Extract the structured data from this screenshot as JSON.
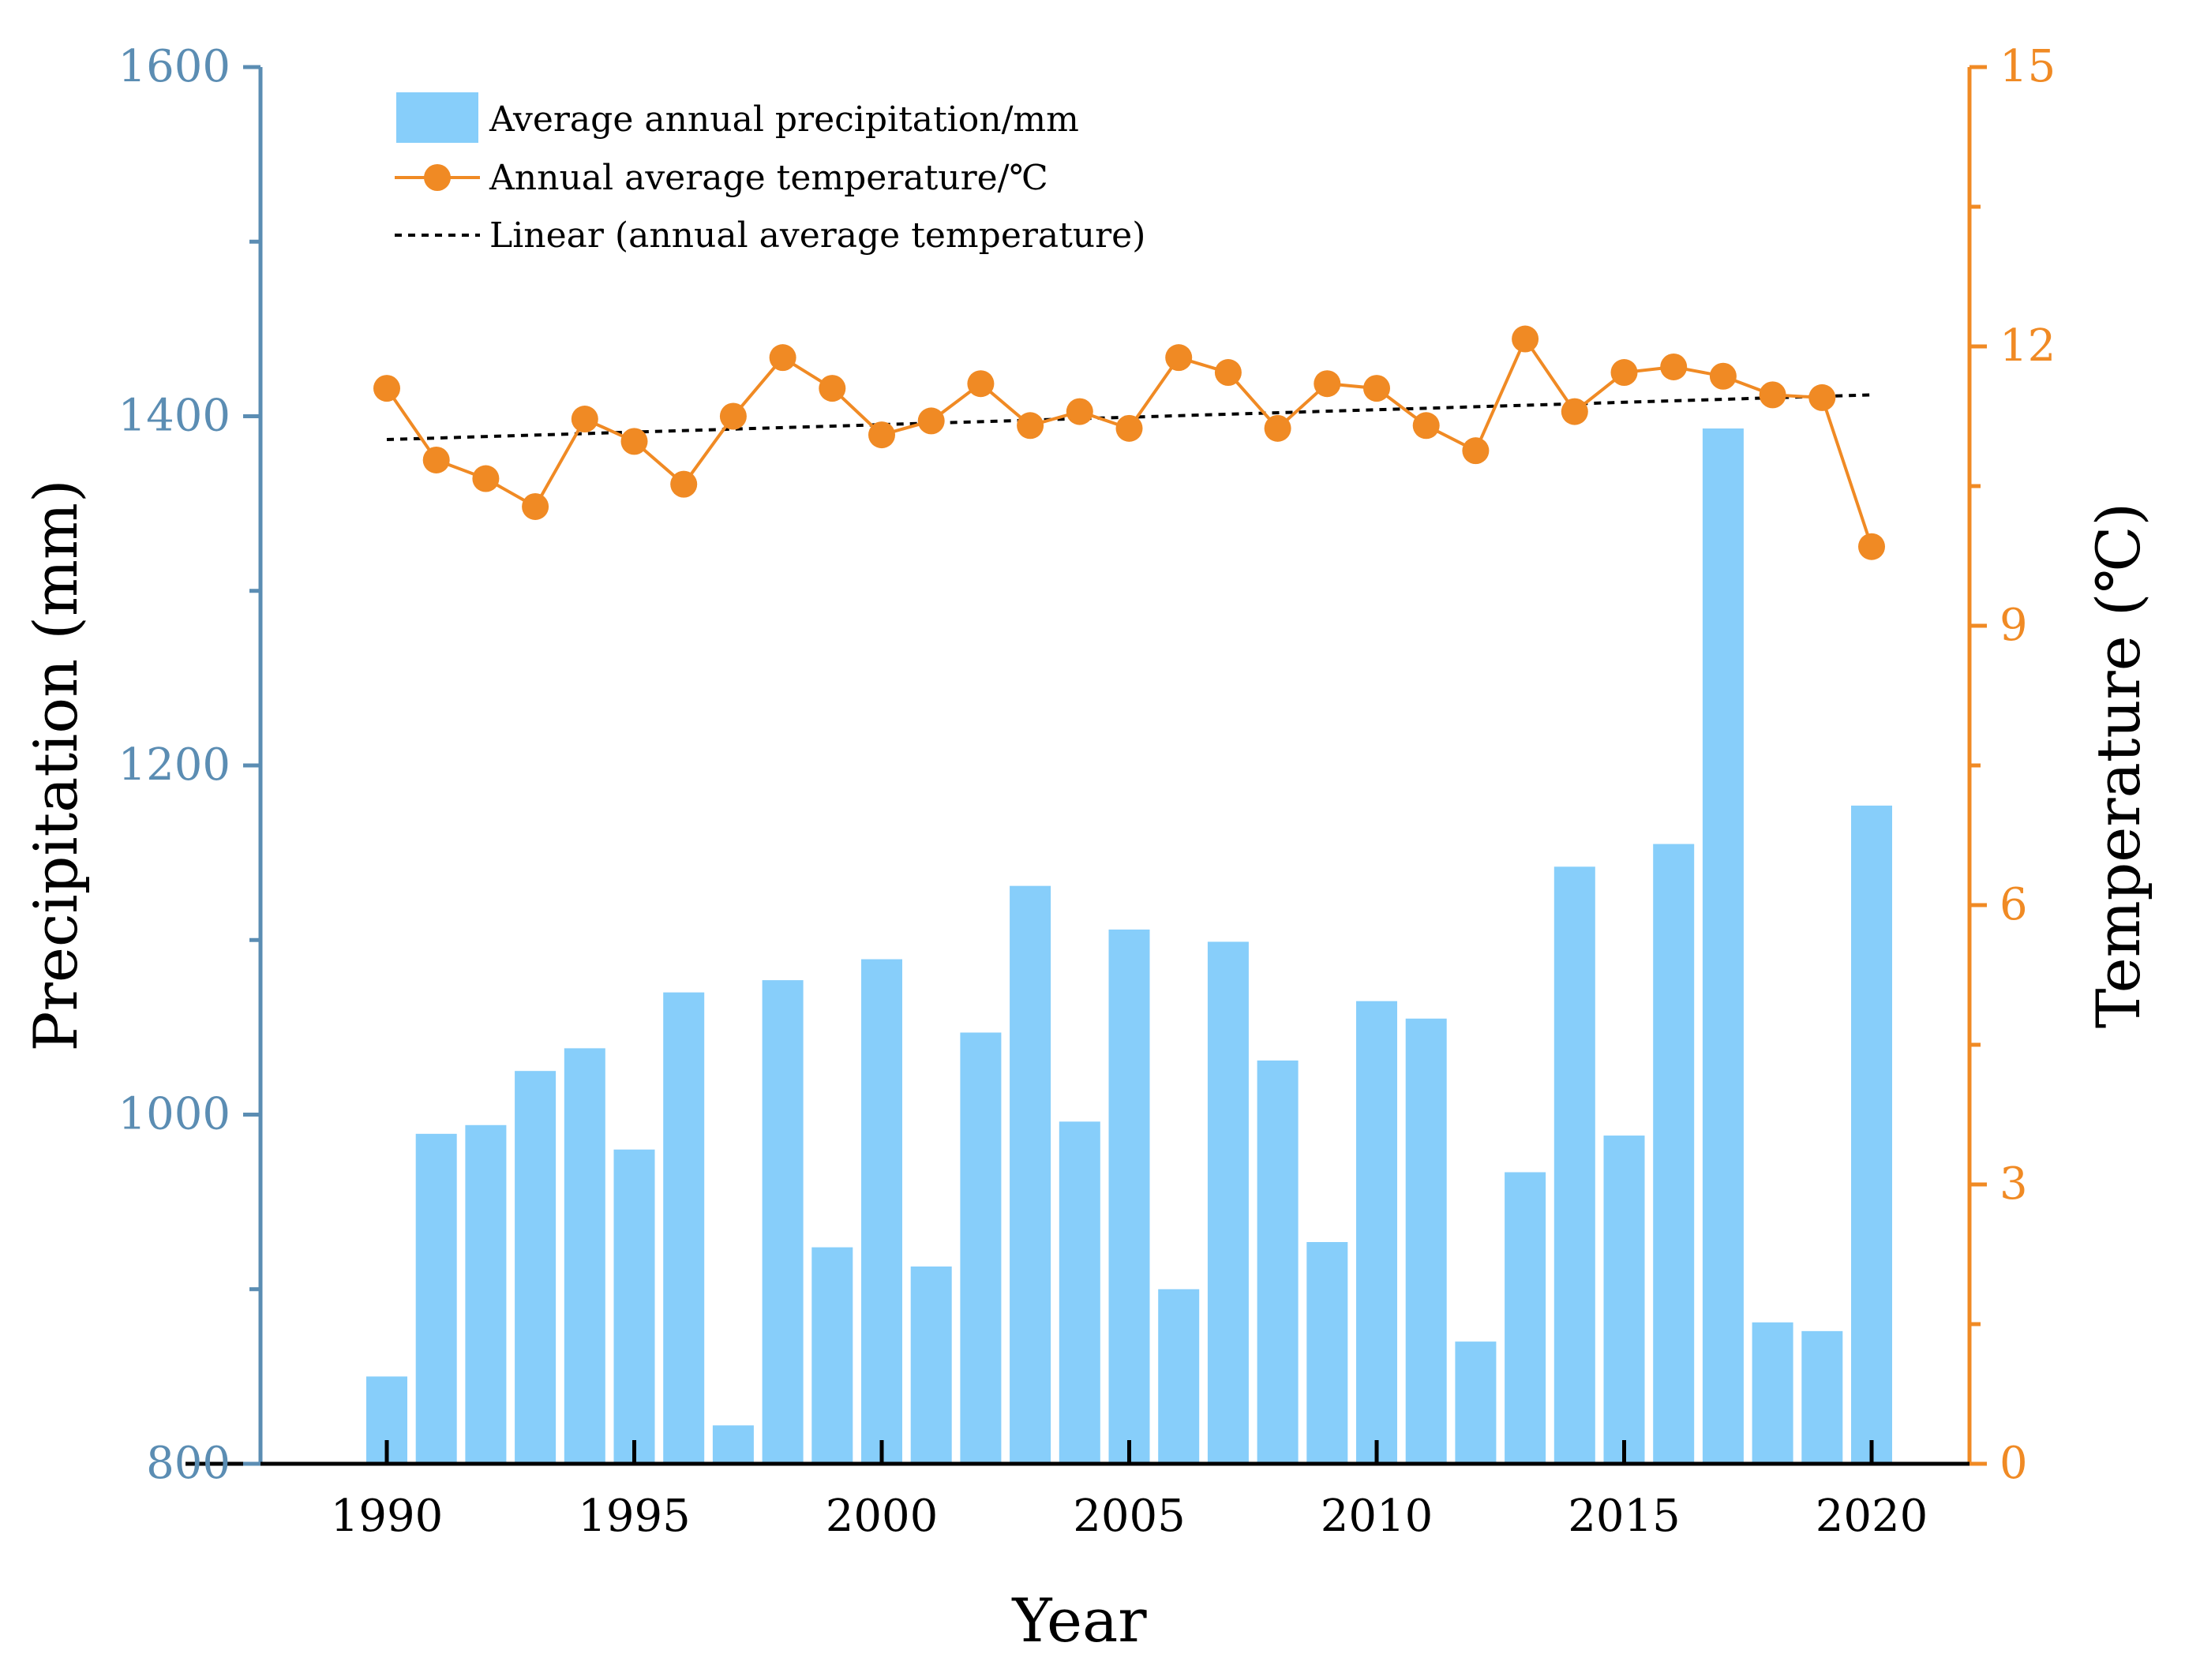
{
  "chart_data": {
    "type": "bar+line",
    "xlabel": "Year",
    "ylabel_left": "Precipitation (mm)",
    "ylabel_right": "Temperature (℃)",
    "ylim_left": [
      800,
      1600
    ],
    "ylim_right": [
      0,
      15
    ],
    "yticks_left": [
      "800",
      "1000",
      "1200",
      "1400",
      "1600"
    ],
    "yticks_right": [
      "0",
      "3",
      "6",
      "9",
      "12",
      "15"
    ],
    "xticks": [
      "1990",
      "1995",
      "2000",
      "2005",
      "2010",
      "2015",
      "2020"
    ],
    "years": [
      1990,
      1991,
      1992,
      1993,
      1994,
      1995,
      1996,
      1997,
      1998,
      1999,
      2000,
      2001,
      2002,
      2003,
      2004,
      2005,
      2006,
      2007,
      2008,
      2009,
      2010,
      2011,
      2012,
      2013,
      2014,
      2015,
      2016,
      2017,
      2018,
      2019,
      2020
    ],
    "series": [
      {
        "name": "Average annual precipitation/mm",
        "kind": "bar",
        "axis": "left",
        "color": "#87cefa",
        "values": [
          850,
          989,
          994,
          1025,
          1038,
          980,
          1070,
          822,
          1077,
          924,
          1089,
          913,
          1047,
          1131,
          996,
          1106,
          900,
          1099,
          1031,
          927,
          1065,
          1055,
          870,
          967,
          1142,
          988,
          1155,
          1393,
          881,
          876,
          1177
        ]
      },
      {
        "name": "Annual average temperature/℃",
        "kind": "line",
        "axis": "right",
        "color": "#f08a24",
        "values": [
          11.55,
          10.78,
          10.58,
          10.28,
          11.22,
          10.98,
          10.52,
          11.25,
          11.88,
          11.55,
          11.05,
          11.2,
          11.6,
          11.15,
          11.3,
          11.12,
          11.88,
          11.72,
          11.12,
          11.6,
          11.55,
          11.15,
          10.88,
          12.08,
          11.3,
          11.72,
          11.78,
          11.68,
          11.48,
          11.45,
          9.85
        ]
      },
      {
        "name": "Linear (annual average temperature)",
        "kind": "trendline",
        "axis": "right",
        "color": "#000000",
        "start": 11.0,
        "end": 11.48
      }
    ],
    "legend_position": "top-left"
  }
}
